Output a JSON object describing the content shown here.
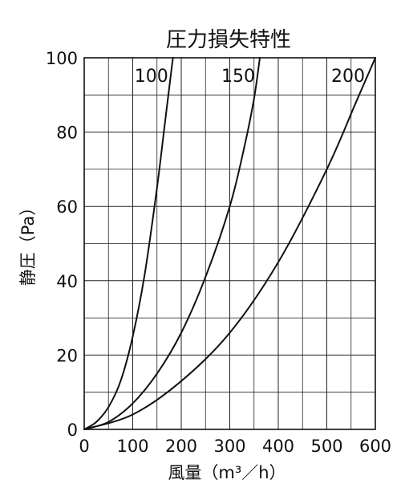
{
  "chart_data": {
    "type": "line",
    "title": "圧力損失特性",
    "xlabel": "風量（m³／h）",
    "ylabel": "静圧（Pa）",
    "xlim": [
      0,
      600
    ],
    "ylim": [
      0,
      100
    ],
    "x_ticks": [
      "0",
      "100",
      "200",
      "300",
      "400",
      "500",
      "600"
    ],
    "y_ticks": [
      "0",
      "20",
      "40",
      "60",
      "80",
      "100"
    ],
    "grid": true,
    "legend": "none",
    "series": [
      {
        "name": "100",
        "points": [
          [
            0,
            0
          ],
          [
            25,
            2
          ],
          [
            50,
            6
          ],
          [
            75,
            13
          ],
          [
            100,
            25
          ],
          [
            125,
            42
          ],
          [
            150,
            65
          ],
          [
            165,
            81
          ],
          [
            180,
            97
          ],
          [
            183,
            100
          ]
        ]
      },
      {
        "name": "150",
        "points": [
          [
            0,
            0
          ],
          [
            50,
            2
          ],
          [
            100,
            7
          ],
          [
            150,
            15
          ],
          [
            200,
            26
          ],
          [
            250,
            41
          ],
          [
            300,
            60
          ],
          [
            330,
            76
          ],
          [
            350,
            89
          ],
          [
            362,
            100
          ]
        ]
      },
      {
        "name": "200",
        "points": [
          [
            0,
            0
          ],
          [
            100,
            4
          ],
          [
            200,
            13
          ],
          [
            300,
            26
          ],
          [
            400,
            45
          ],
          [
            500,
            70
          ],
          [
            560,
            88
          ],
          [
            600,
            100
          ]
        ]
      }
    ]
  }
}
